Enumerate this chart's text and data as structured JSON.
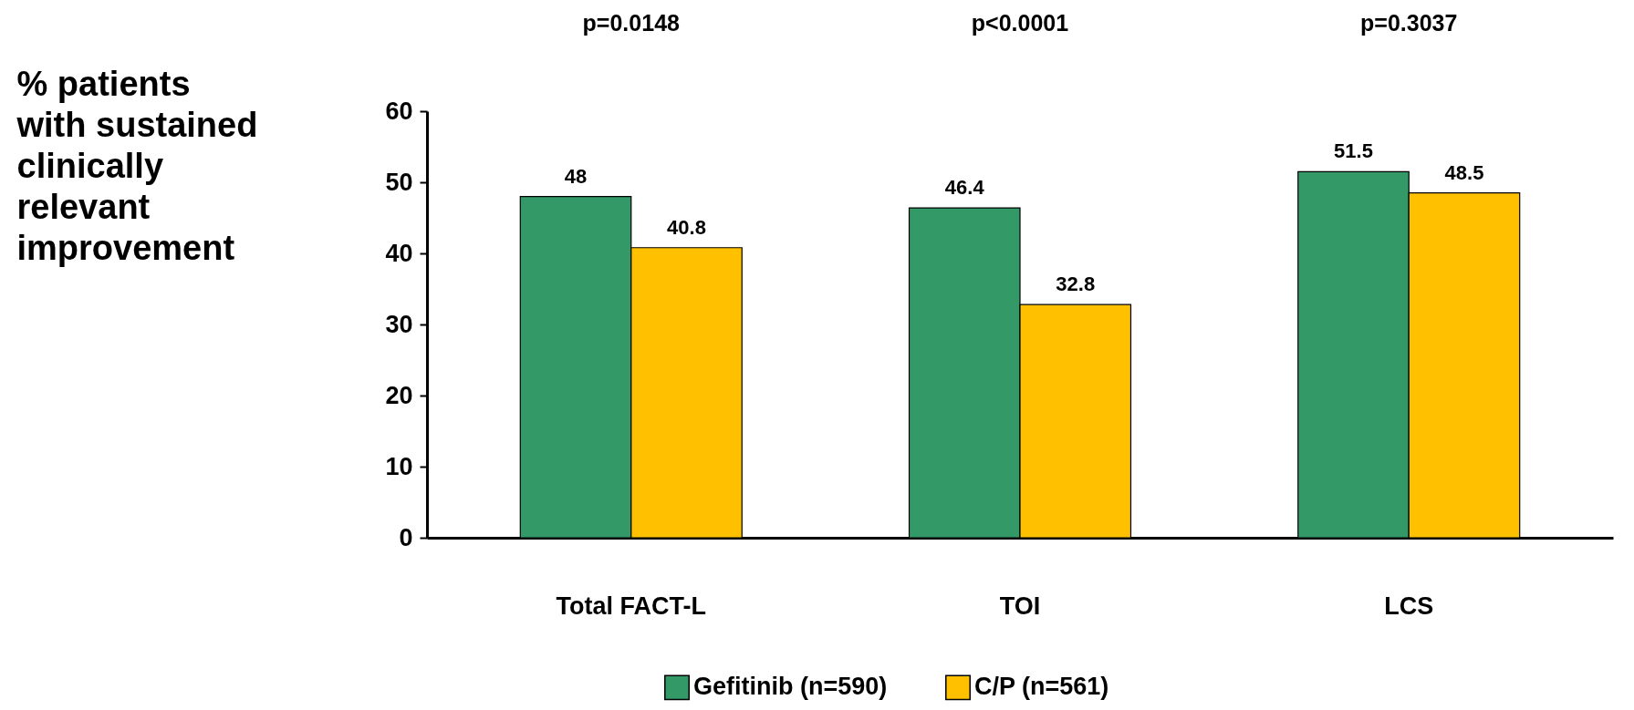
{
  "chart_data": {
    "type": "bar",
    "ylabel": "% patients with sustained clinically relevant improvement",
    "categories": [
      "Total FACT-L",
      "TOI",
      "LCS"
    ],
    "series": [
      {
        "name": "Gefitinib (n=590)",
        "color": "#339966",
        "values": [
          48,
          46.4,
          51.5
        ]
      },
      {
        "name": "C/P (n=561)",
        "color": "#ffc000",
        "values": [
          40.8,
          32.8,
          48.5
        ]
      }
    ],
    "ylim": [
      0,
      60
    ],
    "yticks": [
      0,
      10,
      20,
      30,
      40,
      50,
      60
    ],
    "grid": false,
    "legend": "bottom",
    "data_labels": true,
    "annotations": [
      "p=0.0148",
      "p<0.0001",
      "p=0.3037"
    ]
  }
}
